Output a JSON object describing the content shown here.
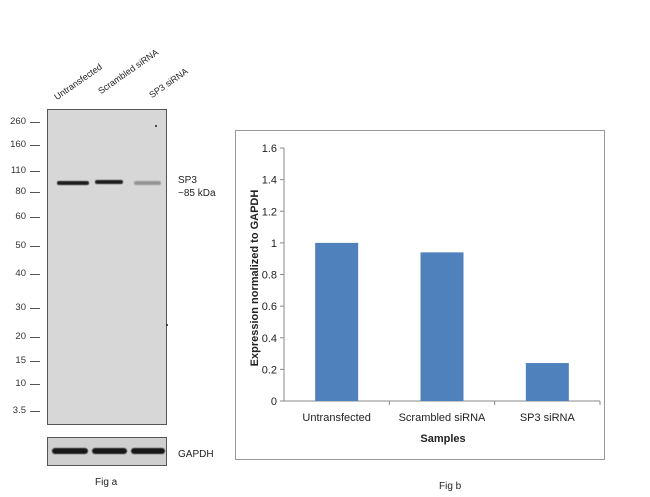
{
  "fig_a": {
    "lanes": [
      "Untransfected",
      "Scrambled siRNA",
      "SP3  siRNA"
    ],
    "markers": [
      "260",
      "160",
      "110",
      "80",
      "60",
      "50",
      "40",
      "30",
      "20",
      "15",
      "10",
      "3.5"
    ],
    "target_label": "SP3",
    "target_size": "~85 kDa",
    "loading_control": "GAPDH",
    "caption": "Fig a",
    "band_relative_intensity": [
      1.0,
      0.95,
      0.25
    ]
  },
  "fig_b": {
    "caption": "Fig b"
  },
  "chart_data": {
    "type": "bar",
    "title": "",
    "categories": [
      "Untransfected",
      "Scrambled siRNA",
      "SP3 siRNA"
    ],
    "values": [
      1.0,
      0.94,
      0.24
    ],
    "xlabel": "Samples",
    "ylabel": "Expression normalized to GAPDH",
    "ylim": [
      0,
      1.6
    ],
    "yticks": [
      "0",
      "0.2",
      "0.4",
      "0.6",
      "0.8",
      "1",
      "1.2",
      "1.4",
      "1.6"
    ],
    "bar_color": "#4f81bd",
    "grid": false,
    "legend": "none"
  }
}
